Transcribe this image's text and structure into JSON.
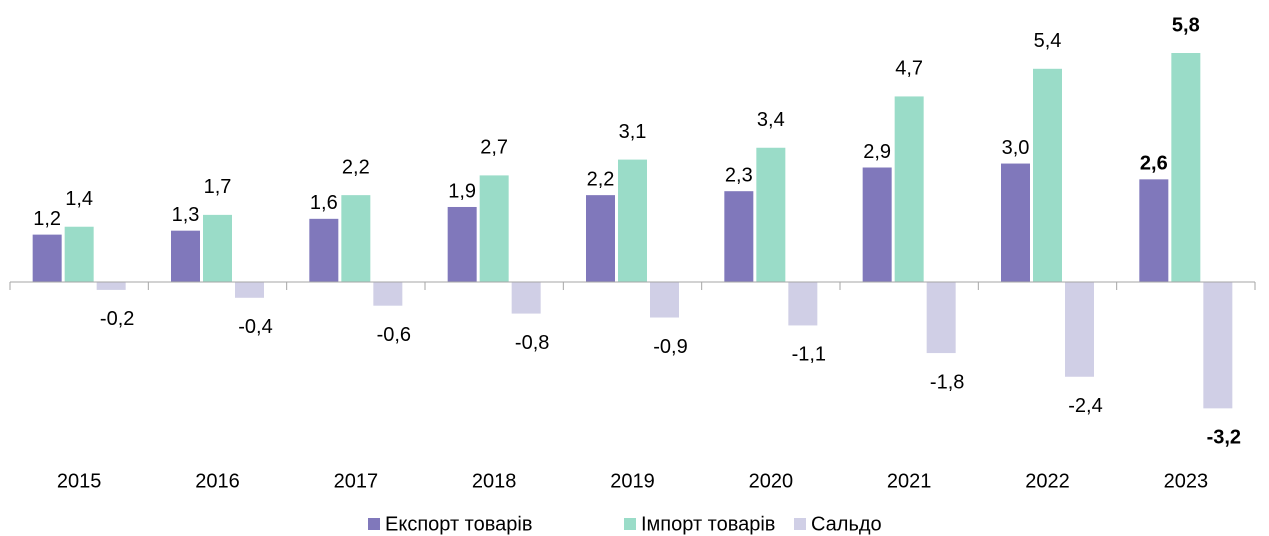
{
  "chart_data": {
    "type": "bar",
    "categories": [
      "2015",
      "2016",
      "2017",
      "2018",
      "2019",
      "2020",
      "2021",
      "2022",
      "2023"
    ],
    "series": [
      {
        "name": "Експорт товарів",
        "color": "#8078bb",
        "values": [
          1.2,
          1.3,
          1.6,
          1.9,
          2.2,
          2.3,
          2.9,
          3.0,
          2.6
        ],
        "value_labels": [
          "1,2",
          "1,3",
          "1,6",
          "1,9",
          "2,2",
          "2,3",
          "2,9",
          "3,0",
          "2,6"
        ]
      },
      {
        "name": "Імпорт товарів",
        "color": "#9adcc8",
        "values": [
          1.4,
          1.7,
          2.2,
          2.7,
          3.1,
          3.4,
          4.7,
          5.4,
          5.8
        ],
        "value_labels": [
          "1,4",
          "1,7",
          "2,2",
          "2,7",
          "3,1",
          "3,4",
          "4,7",
          "5,4",
          "5,8"
        ]
      },
      {
        "name": "Сальдо",
        "color": "#d0cfe6",
        "values": [
          -0.2,
          -0.4,
          -0.6,
          -0.8,
          -0.9,
          -1.1,
          -1.8,
          -2.4,
          -3.2
        ],
        "value_labels": [
          "-0,2",
          "-0,4",
          "-0,6",
          "-0,8",
          "-0,9",
          "-1,1",
          "-1,8",
          "-2,4",
          "-3,2"
        ]
      }
    ],
    "legend": "bottom"
  }
}
